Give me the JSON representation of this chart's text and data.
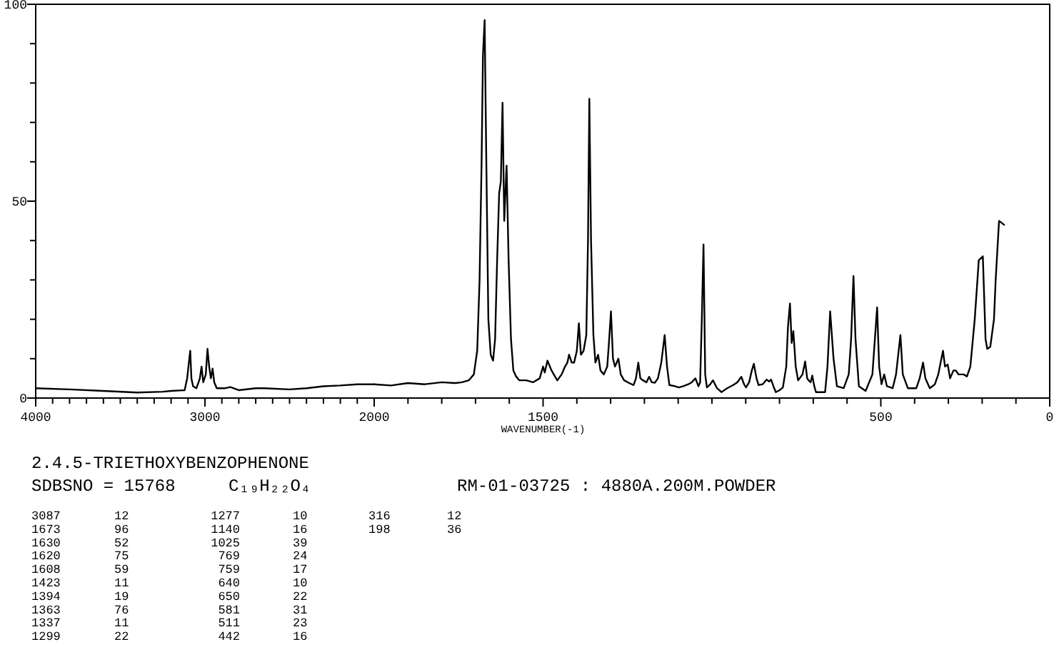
{
  "chart_data": [
    {
      "type": "line",
      "xlim": [
        4000,
        2000
      ],
      "ylim": [
        0,
        100
      ],
      "yticks": [
        0,
        {
          "value": 10,
          "label": null
        },
        {
          "value": 20,
          "label": null
        },
        {
          "value": 30,
          "label": null
        },
        {
          "value": 40,
          "label": null
        },
        50,
        {
          "value": 60,
          "label": null
        },
        {
          "value": 70,
          "label": null
        },
        {
          "value": 80,
          "label": null
        },
        {
          "value": 90,
          "label": null
        },
        100
      ],
      "xticks": [
        4000,
        {
          "value": 3900,
          "label": null
        },
        {
          "value": 3800,
          "label": null
        },
        {
          "value": 3700,
          "label": null
        },
        {
          "value": 3600,
          "label": null
        },
        {
          "value": 3500,
          "label": null
        },
        {
          "value": 3400,
          "label": null
        },
        {
          "value": 3300,
          "label": null
        },
        {
          "value": 3200,
          "label": null
        },
        {
          "value": 3100,
          "label": null
        },
        3000,
        {
          "value": 2900,
          "label": null
        },
        {
          "value": 2800,
          "label": null
        },
        {
          "value": 2700,
          "label": null
        },
        {
          "value": 2600,
          "label": null
        },
        {
          "value": 2500,
          "label": null
        },
        {
          "value": 2400,
          "label": null
        },
        {
          "value": 2300,
          "label": null
        },
        {
          "value": 2200,
          "label": null
        },
        {
          "value": 2100,
          "label": null
        },
        2000
      ],
      "series": [
        {
          "color": "#000000",
          "x": [
            4000,
            3800,
            3600,
            3400,
            3250,
            3200,
            3120,
            3105,
            3095,
            3087,
            3080,
            3070,
            3050,
            3030,
            3020,
            3010,
            2995,
            2985,
            2975,
            2965,
            2955,
            2945,
            2930,
            2880,
            2850,
            2800,
            2700,
            2650,
            2500,
            2400,
            2300,
            2200,
            2100,
            2000
          ],
          "values": [
            2.5,
            2.2,
            1.8,
            1.4,
            1.6,
            1.8,
            2,
            5,
            9,
            12,
            5,
            3,
            2.5,
            5,
            8,
            4,
            6,
            12.5,
            8,
            5,
            7.5,
            4,
            2.5,
            2.5,
            2.8,
            2,
            2.5,
            2.5,
            2.2,
            2.5,
            3,
            3.2,
            3.5,
            3.5
          ]
        }
      ],
      "annotations": [
        "2.4.5-TRIETHOXYBENZOPHENONE",
        "SDBSNO = 15768",
        "C₁₉H₂₂O₄",
        "RM-01-03725 : 4880A.200M.POWDER",
        "3087",
        "12",
        "1673",
        "96",
        "1630",
        "52",
        "1620",
        "75",
        "1608",
        "59",
        "1423",
        "11",
        "1394",
        "19",
        "1363",
        "76",
        "1337",
        "11",
        "1299",
        "22",
        "1277",
        "10",
        "1140",
        "16",
        "1025",
        "39",
        "769",
        "24",
        "759",
        "17",
        "640",
        "10",
        "650",
        "22",
        "581",
        "31",
        "511",
        "23",
        "442",
        "16",
        "316",
        "12",
        "198",
        "36"
      ]
    },
    {
      "type": "line",
      "xlabel": "WAVENUMBER(-1)",
      "tick_labels": "x",
      "xlim": [
        2000,
        0
      ],
      "ylim": [
        0,
        100
      ],
      "xticks": [
        {
          "value": 1900,
          "label": null
        },
        {
          "value": 1800,
          "label": null
        },
        {
          "value": 1700,
          "label": null
        },
        {
          "value": 1600,
          "label": null
        },
        1500,
        {
          "value": 1400,
          "label": null
        },
        {
          "value": 1300,
          "label": null
        },
        {
          "value": 1200,
          "label": null
        },
        {
          "value": 1100,
          "label": null
        },
        {
          "value": 1000,
          "label": null
        },
        {
          "value": 900,
          "label": null
        },
        {
          "value": 800,
          "label": null
        },
        {
          "value": 700,
          "label": null
        },
        {
          "value": 600,
          "label": null
        },
        500,
        {
          "value": 400,
          "label": null
        },
        {
          "value": 300,
          "label": null
        },
        {
          "value": 200,
          "label": null
        },
        {
          "value": 100,
          "label": null
        },
        0
      ],
      "series": [
        {
          "color": "#000000",
          "x": [
            2000,
            1950,
            1900,
            1850,
            1800,
            1760,
            1740,
            1720,
            1705,
            1695,
            1688,
            1682,
            1678,
            1673,
            1668,
            1662,
            1655,
            1648,
            1642,
            1636,
            1630,
            1625,
            1620,
            1615,
            1608,
            1602,
            1595,
            1588,
            1580,
            1570,
            1550,
            1530,
            1510,
            1500,
            1495,
            1487,
            1475,
            1458,
            1445,
            1435,
            1428,
            1423,
            1415,
            1408,
            1400,
            1394,
            1388,
            1380,
            1372,
            1367,
            1363,
            1358,
            1351,
            1345,
            1337,
            1330,
            1320,
            1310,
            1305,
            1299,
            1293,
            1287,
            1282,
            1277,
            1270,
            1260,
            1245,
            1232,
            1225,
            1218,
            1212,
            1204,
            1194,
            1186,
            1178,
            1169,
            1160,
            1150,
            1140,
            1133,
            1126,
            1110,
            1098,
            1085,
            1070,
            1060,
            1049,
            1040,
            1035,
            1030,
            1025,
            1020,
            1015,
            1005,
            997,
            985,
            972,
            955,
            937,
            925,
            913,
            905,
            899,
            890,
            882,
            876,
            868,
            862,
            850,
            838,
            831,
            825,
            818,
            811,
            800,
            790,
            780,
            775,
            769,
            764,
            759,
            752,
            745,
            732,
            724,
            718,
            714,
            708,
            703,
            697,
            692,
            680,
            665,
            658,
            650,
            640,
            630,
            610,
            595,
            588,
            581,
            575,
            565,
            545,
            525,
            511,
            505,
            498,
            490,
            482,
            465,
            455,
            442,
            435,
            420,
            395,
            385,
            375,
            368,
            355,
            340,
            330,
            316,
            310,
            302,
            295,
            285,
            278,
            270,
            255,
            245,
            235,
            222,
            210,
            198,
            190,
            185,
            176,
            165,
            160,
            150,
            135
          ],
          "values": [
            3.5,
            3.2,
            3.8,
            3.5,
            4,
            3.8,
            4,
            4.5,
            6,
            12,
            30,
            60,
            87,
            96,
            60,
            20,
            11,
            9.5,
            15,
            35,
            52,
            55,
            75,
            45,
            59,
            35,
            15,
            7,
            5.5,
            4.5,
            4.5,
            4,
            5,
            8,
            6.5,
            9.5,
            7,
            4.5,
            6,
            8,
            9,
            11,
            9,
            9,
            12,
            19,
            11,
            12,
            16,
            40,
            76,
            40,
            16,
            9,
            11,
            7,
            6,
            8,
            14,
            22,
            10,
            8,
            9,
            10,
            6,
            4.5,
            3.8,
            3.3,
            5,
            9,
            5,
            4.5,
            4,
            5.4,
            4,
            3.9,
            5,
            9,
            16,
            8,
            3.3,
            3,
            2.7,
            3,
            3.5,
            4,
            5,
            3,
            4,
            20,
            39,
            6,
            2.7,
            3.5,
            4.5,
            2.5,
            1.5,
            2.5,
            3.3,
            4,
            5.4,
            3.5,
            2.7,
            4,
            7,
            8.7,
            5,
            3.3,
            3.5,
            4.7,
            4.2,
            4.7,
            3,
            1.5,
            2,
            2.7,
            8,
            18,
            24,
            14,
            17,
            8,
            4.5,
            6,
            9.3,
            5,
            4.5,
            4,
            5.7,
            3,
            1.5,
            1.5,
            1.5,
            8,
            22,
            10,
            3,
            2.5,
            6,
            15,
            31,
            15,
            3,
            1.8,
            6,
            23,
            8,
            3.5,
            6,
            3,
            2.5,
            6,
            16,
            6,
            2.5,
            2.5,
            5,
            9,
            5,
            2.5,
            3.5,
            6,
            12,
            8,
            8.5,
            5,
            7,
            7,
            6,
            6,
            5.5,
            8,
            20,
            35,
            36,
            15,
            12.5,
            13,
            20,
            30,
            45,
            44
          ]
        }
      ]
    }
  ]
}
